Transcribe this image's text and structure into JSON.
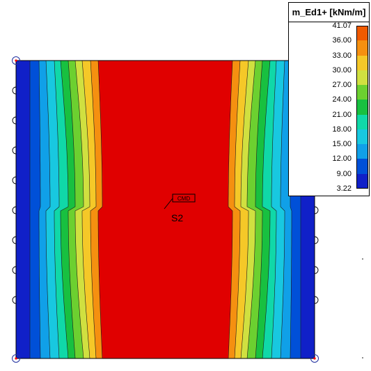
{
  "legend": {
    "title": "m_Ed1+ [kNm/m]",
    "levels": [
      "41.07",
      "36.00",
      "33.00",
      "30.00",
      "27.00",
      "24.00",
      "21.00",
      "18.00",
      "15.00",
      "12.00",
      "9.00",
      "3.22"
    ],
    "colors": [
      "#e00000",
      "#f05a00",
      "#f59010",
      "#f5c828",
      "#d0e040",
      "#6cd030",
      "#18c040",
      "#10d8a8",
      "#18c8e0",
      "#10a0e8",
      "#0050d8",
      "#1020c8"
    ]
  },
  "plate": {
    "label": "S2",
    "tag": "CMD"
  },
  "colors": {
    "edge": "#000000",
    "support": "#000000",
    "support_center": "#ff0000"
  }
}
